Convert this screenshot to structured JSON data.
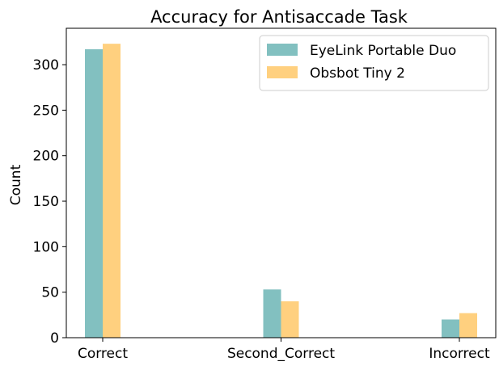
{
  "chart_data": {
    "type": "bar",
    "title": "Accuracy for Antisaccade Task",
    "xlabel": "",
    "ylabel": "Count",
    "categories": [
      "Correct",
      "Second_Correct",
      "Incorrect"
    ],
    "series": [
      {
        "name": "EyeLink Portable Duo",
        "values": [
          317,
          53,
          20
        ],
        "color": "#82c0c0"
      },
      {
        "name": "Obsbot Tiny 2",
        "values": [
          323,
          40,
          27
        ],
        "color": "#ffd07f"
      }
    ],
    "ylim": [
      0,
      340
    ],
    "yticks": [
      0,
      50,
      100,
      150,
      200,
      250,
      300
    ],
    "grid": false,
    "legend_position": "top-right"
  }
}
